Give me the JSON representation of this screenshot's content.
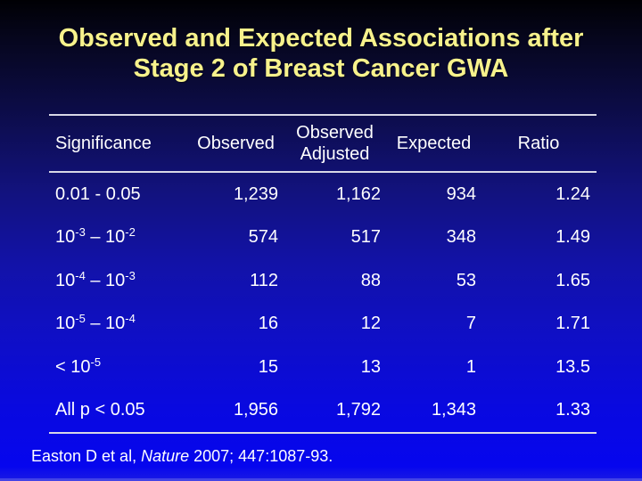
{
  "slide": {
    "title_line1": "Observed and Expected Associations after",
    "title_line2": "Stage 2 of Breast Cancer GWA",
    "accent_color": "#f7f28c",
    "background_top": "#000004",
    "background_bottom": "#0606ee",
    "rule_color": "#d8d8e6"
  },
  "table": {
    "columns": [
      {
        "label": "Significance"
      },
      {
        "label": "Observed"
      },
      {
        "label": "Observed",
        "label2": "Adjusted"
      },
      {
        "label": "Expected"
      },
      {
        "label": "Ratio"
      }
    ],
    "rows": [
      {
        "significance": "0.01 - 0.05",
        "observed": "1,239",
        "adjusted": "1,162",
        "expected": "934",
        "ratio": "1.24"
      },
      {
        "significance": "10^-3^ – 10^-2^",
        "observed": "574",
        "adjusted": "517",
        "expected": "348",
        "ratio": "1.49"
      },
      {
        "significance": "10^-4^ – 10^-3^",
        "observed": "112",
        "adjusted": "88",
        "expected": "53",
        "ratio": "1.65"
      },
      {
        "significance": "10^-5^ – 10^-4^",
        "observed": "16",
        "adjusted": "12",
        "expected": "7",
        "ratio": "1.71"
      },
      {
        "significance": "< 10^-5^",
        "observed": "15",
        "adjusted": "13",
        "expected": "1",
        "ratio": "13.5"
      },
      {
        "significance": "All p < 0.05",
        "observed": "1,956",
        "adjusted": "1,792",
        "expected": "1,343",
        "ratio": "1.33"
      }
    ]
  },
  "citation": {
    "prefix": "Easton D et al, ",
    "journal": "Nature",
    "suffix": " 2007; 447:1087-93."
  },
  "chart_data": {
    "type": "table",
    "title": "Observed and Expected Associations after Stage 2 of Breast Cancer GWA",
    "columns": [
      "Significance",
      "Observed",
      "Observed Adjusted",
      "Expected",
      "Ratio"
    ],
    "rows": [
      [
        "0.01 - 0.05",
        1239,
        1162,
        934,
        1.24
      ],
      [
        "10^-3 – 10^-2",
        574,
        517,
        348,
        1.49
      ],
      [
        "10^-4 – 10^-3",
        112,
        88,
        53,
        1.65
      ],
      [
        "10^-5 – 10^-4",
        16,
        12,
        7,
        1.71
      ],
      [
        "< 10^-5",
        15,
        13,
        1,
        13.5
      ],
      [
        "All p < 0.05",
        1956,
        1792,
        1343,
        1.33
      ]
    ]
  }
}
